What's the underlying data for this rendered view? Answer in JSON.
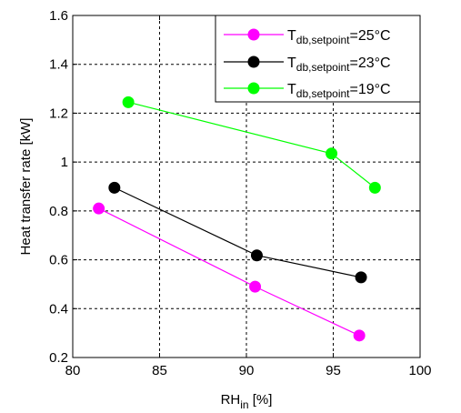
{
  "chart_data": {
    "type": "line",
    "xlabel": {
      "main": "RH",
      "sub": "in",
      "suffix": " [%]"
    },
    "ylabel": "Heat transfer rate [kW]",
    "xlim": [
      80,
      100
    ],
    "ylim": [
      0.2,
      1.6
    ],
    "xticks": [
      80,
      85,
      90,
      95,
      100
    ],
    "yticks": [
      0.2,
      0.4,
      0.6,
      0.8,
      1,
      1.2,
      1.4,
      1.6
    ],
    "xtick_labels": [
      "80",
      "85",
      "90",
      "95",
      "100"
    ],
    "ytick_labels": [
      "0.2",
      "0.4",
      "0.6",
      "0.8",
      "1",
      "1.2",
      "1.4",
      "1.6"
    ],
    "grid": true,
    "legend_position": "top-right",
    "series": [
      {
        "name": {
          "main": "T",
          "sub": "db,setpoint",
          "suffix": "=25°C"
        },
        "color": "#ff00ff",
        "x": [
          81.5,
          90.5,
          96.5
        ],
        "y": [
          0.81,
          0.49,
          0.29
        ]
      },
      {
        "name": {
          "main": "T",
          "sub": "db,setpoint",
          "suffix": "=23°C"
        },
        "color": "#000000",
        "x": [
          82.4,
          90.6,
          96.6
        ],
        "y": [
          0.895,
          0.618,
          0.528
        ]
      },
      {
        "name": {
          "main": "T",
          "sub": "db,setpoint",
          "suffix": "=19°C"
        },
        "color": "#00ff00",
        "x": [
          83.2,
          94.9,
          97.4
        ],
        "y": [
          1.245,
          1.035,
          0.895
        ]
      }
    ]
  }
}
